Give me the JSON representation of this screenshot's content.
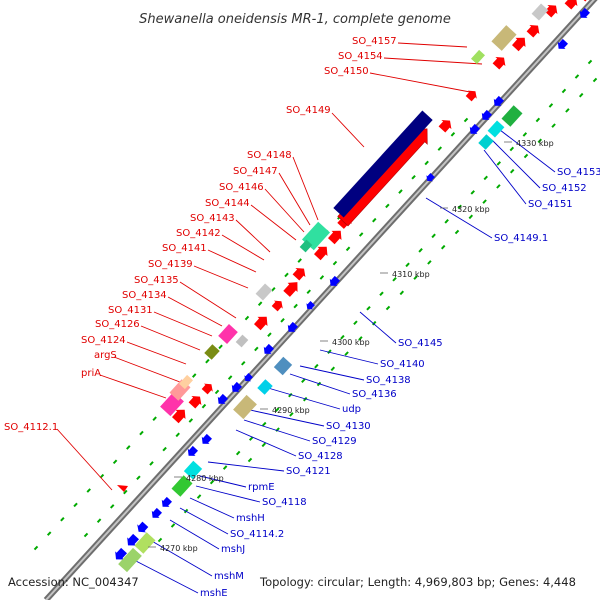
{
  "title": "Shewanella oneidensis MR-1, complete genome",
  "footer": {
    "accession": "Accession: NC_004347",
    "summary": "Topology: circular; Length: 4,969,803 bp; Genes: 4,448"
  },
  "colors": {
    "label_left": "#e00000",
    "label_right": "#0000c8",
    "backbone": "#8c8c8c",
    "forward_gene": "#ff0000",
    "reverse_gene": "#0000ff",
    "large_gene": "#000080",
    "tick": "#00aa00"
  },
  "kbp_ticks": [
    "4270 kbp",
    "4280 kbp",
    "4290 kbp",
    "4300 kbp",
    "4310 kbp",
    "4320 kbp",
    "4330 kbp"
  ],
  "left_labels": [
    "SO_4157",
    "SO_4154",
    "SO_4150",
    "SO_4149",
    "SO_4148",
    "SO_4147",
    "SO_4146",
    "SO_4144",
    "SO_4143",
    "SO_4142",
    "SO_4141",
    "SO_4139",
    "SO_4135",
    "SO_4134",
    "SO_4131",
    "SO_4126",
    "SO_4124",
    "argS",
    "priA",
    "SO_4112.1"
  ],
  "right_labels": [
    "SO_4153",
    "SO_4152",
    "SO_4151",
    "SO_4149.1",
    "SO_4145",
    "SO_4140",
    "SO_4138",
    "SO_4136",
    "udp",
    "SO_4130",
    "SO_4129",
    "SO_4128",
    "SO_4121",
    "rpmE",
    "SO_4118",
    "mshH",
    "SO_4114.2",
    "mshJ",
    "mshM",
    "mshE"
  ]
}
